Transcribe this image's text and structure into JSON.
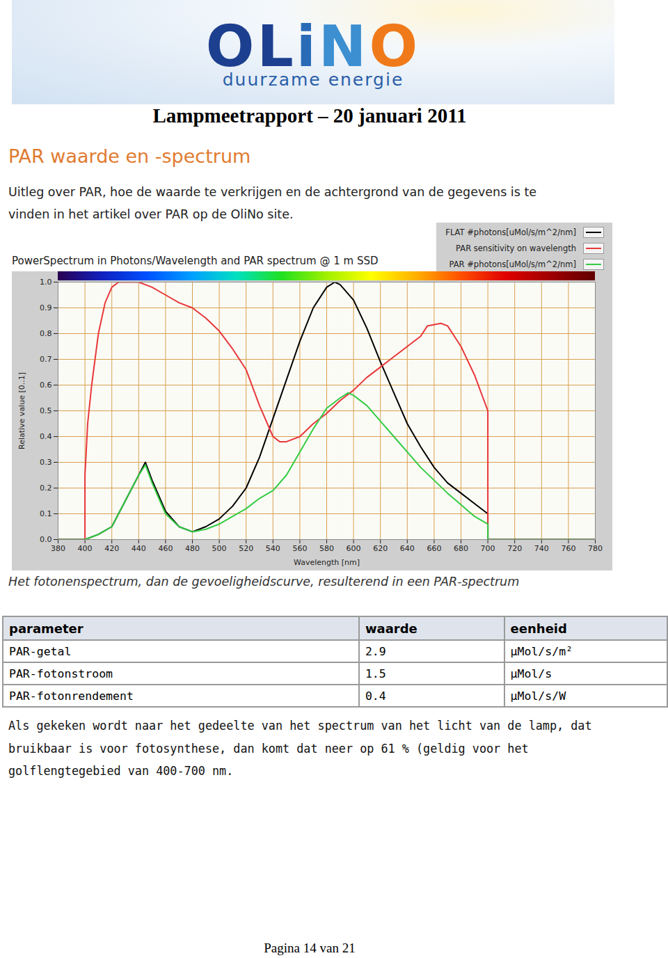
{
  "header": {
    "logo": "OLiNO",
    "logo_subtitle": "duurzame energie",
    "title": "Lampmeetrapport – 20 januari 2011"
  },
  "heading": "PAR waarde en -spectrum",
  "intro": [
    "Uitleg over PAR, hoe de waarde te verkrijgen en de achtergrond van de gegevens is te",
    "vinden in het artikel over PAR op de OliNo site."
  ],
  "chart_data": {
    "type": "line",
    "title": "PowerSpectrum in Photons/Wavelength and PAR spectrum @ 1 m SSD",
    "x_label": "Wavelength [nm]",
    "y_label": "Relative value [0..1]",
    "xlim": [
      380,
      780
    ],
    "xticks": [
      380,
      400,
      420,
      440,
      460,
      480,
      500,
      520,
      540,
      560,
      580,
      600,
      620,
      640,
      660,
      680,
      700,
      720,
      740,
      760,
      780
    ],
    "ylim": [
      0,
      1
    ],
    "yticks": [
      {
        "value": 0,
        "label": "0.0"
      },
      0.1,
      0.2,
      0.3,
      0.4,
      0.5,
      0.6,
      0.7,
      0.8,
      0.9,
      {
        "value": 1,
        "label": "1.0"
      }
    ],
    "grid": true,
    "legend": "top-right",
    "series": [
      {
        "name": "FLAT #photons[uMol/s/m^2/nm]",
        "color": "#000000",
        "x": [
          380,
          400,
          410,
          420,
          430,
          440,
          445,
          450,
          460,
          470,
          480,
          490,
          500,
          510,
          520,
          530,
          540,
          550,
          560,
          570,
          580,
          586,
          590,
          600,
          610,
          620,
          630,
          640,
          650,
          660,
          670,
          680,
          690,
          700,
          700,
          780
        ],
        "values": [
          0,
          0,
          0.02,
          0.05,
          0.15,
          0.25,
          0.3,
          0.23,
          0.11,
          0.05,
          0.03,
          0.05,
          0.08,
          0.13,
          0.2,
          0.32,
          0.47,
          0.62,
          0.77,
          0.9,
          0.98,
          1.0,
          0.99,
          0.93,
          0.82,
          0.69,
          0.57,
          0.45,
          0.36,
          0.28,
          0.22,
          0.18,
          0.14,
          0.1,
          0,
          0
        ]
      },
      {
        "name": "PAR sensitivity on wavelength",
        "color": "#e8383a",
        "x": [
          380,
          400,
          400,
          402,
          405,
          410,
          415,
          420,
          425,
          440,
          450,
          460,
          470,
          480,
          490,
          500,
          510,
          520,
          530,
          540,
          545,
          550,
          560,
          570,
          580,
          590,
          600,
          610,
          620,
          630,
          640,
          650,
          655,
          665,
          670,
          680,
          690,
          700,
          700,
          780
        ],
        "values": [
          0,
          0,
          0.25,
          0.45,
          0.6,
          0.8,
          0.92,
          0.98,
          1.0,
          1.0,
          0.98,
          0.95,
          0.92,
          0.9,
          0.86,
          0.81,
          0.74,
          0.66,
          0.52,
          0.4,
          0.38,
          0.38,
          0.4,
          0.45,
          0.49,
          0.54,
          0.58,
          0.63,
          0.67,
          0.71,
          0.75,
          0.79,
          0.83,
          0.84,
          0.83,
          0.75,
          0.64,
          0.5,
          0,
          0
        ]
      },
      {
        "name": "PAR #photons[uMol/s/m^2/nm]",
        "color": "#33cc44",
        "x": [
          380,
          400,
          410,
          420,
          430,
          440,
          445,
          450,
          460,
          470,
          480,
          490,
          500,
          510,
          520,
          530,
          540,
          550,
          560,
          570,
          580,
          590,
          596,
          600,
          610,
          620,
          630,
          640,
          650,
          660,
          670,
          680,
          690,
          700,
          700,
          780
        ],
        "values": [
          0,
          0,
          0.02,
          0.05,
          0.15,
          0.25,
          0.29,
          0.22,
          0.1,
          0.05,
          0.03,
          0.04,
          0.06,
          0.09,
          0.12,
          0.16,
          0.19,
          0.25,
          0.34,
          0.43,
          0.51,
          0.55,
          0.57,
          0.56,
          0.52,
          0.46,
          0.4,
          0.34,
          0.28,
          0.23,
          0.18,
          0.135,
          0.09,
          0.06,
          0,
          0
        ]
      }
    ]
  },
  "caption": "Het fotonenspectrum, dan de gevoeligheidscurve, resulterend in een PAR-spectrum",
  "table": {
    "columns": [
      "parameter",
      "waarde",
      "eenheid"
    ],
    "rows": [
      [
        "PAR-getal",
        2.9,
        "µMol/s/m²"
      ],
      [
        "PAR-fotonstroom",
        1.5,
        "µMol/s"
      ],
      [
        "PAR-fotonrendement",
        0.4,
        "µMol/s/W"
      ]
    ]
  },
  "conclusion": [
    "Als gekeken wordt naar het gedeelte van het spectrum van het licht van de lamp, dat",
    "bruikbaar is voor fotosynthese, dan komt dat neer op 61 % (geldig voor het",
    "golflengtegebied van 400-700 nm."
  ],
  "footer": "Pagina 14 van 21"
}
